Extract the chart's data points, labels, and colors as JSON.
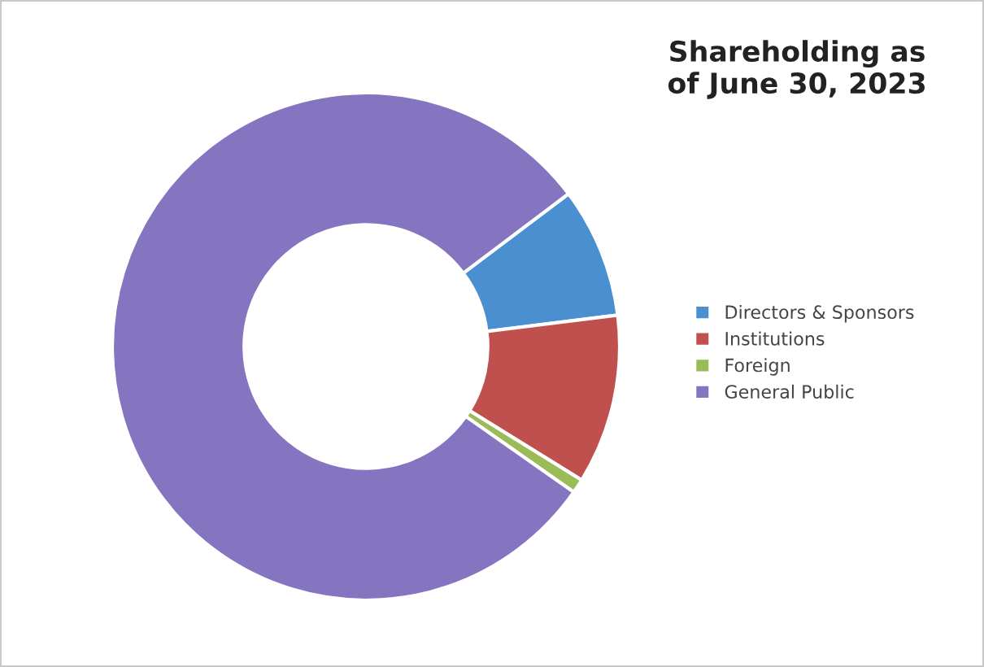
{
  "chart_data": {
    "type": "donut",
    "title": "Shareholding as\nof June 30, 2023",
    "categories": [
      "Directors & Sponsors",
      "Institutions",
      "Foreign",
      "General Public"
    ],
    "values": [
      8.3,
      10.8,
      0.9,
      80.0
    ],
    "colors": [
      "#4a8fd0",
      "#c0504d",
      "#9bbb59",
      "#8574c0"
    ],
    "legend": "right"
  }
}
